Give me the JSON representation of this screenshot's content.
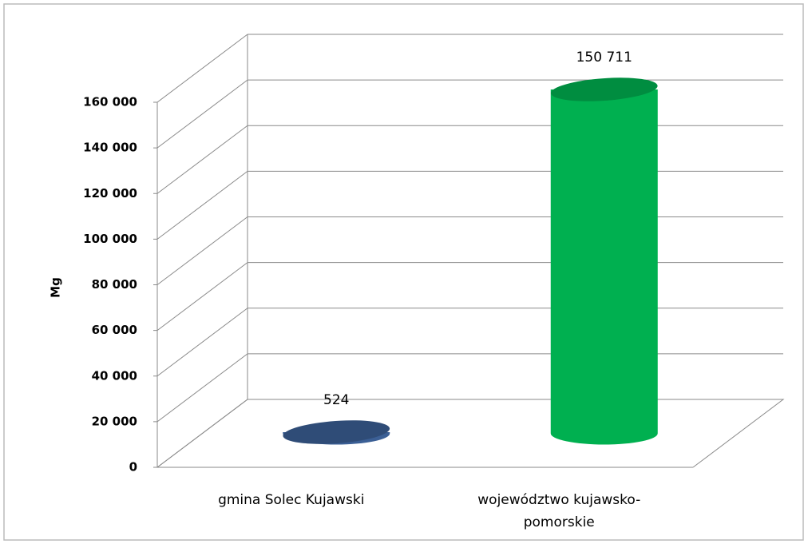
{
  "chart_data": {
    "type": "bar3d",
    "y_label": "Mg",
    "categories": [
      "gmina Solec Kujawski",
      "województwo kujawsko-pomorskie"
    ],
    "values": [
      524,
      150711
    ],
    "value_labels": [
      "524",
      "150 711"
    ],
    "colors": [
      "#3b5f95",
      "#00b050"
    ],
    "ylim": [
      0,
      160000
    ],
    "yticks": [
      0,
      {
        "value": 20000,
        "label": "20 000"
      },
      {
        "value": 40000,
        "label": "40 000"
      },
      {
        "value": 60000,
        "label": "60 000"
      },
      {
        "value": 80000,
        "label": "80 000"
      },
      {
        "value": 100000,
        "label": "100 000"
      },
      {
        "value": 120000,
        "label": "120 000"
      },
      {
        "value": 140000,
        "label": "140 000"
      },
      {
        "value": 160000,
        "label": "160 000"
      }
    ],
    "grid": true
  }
}
